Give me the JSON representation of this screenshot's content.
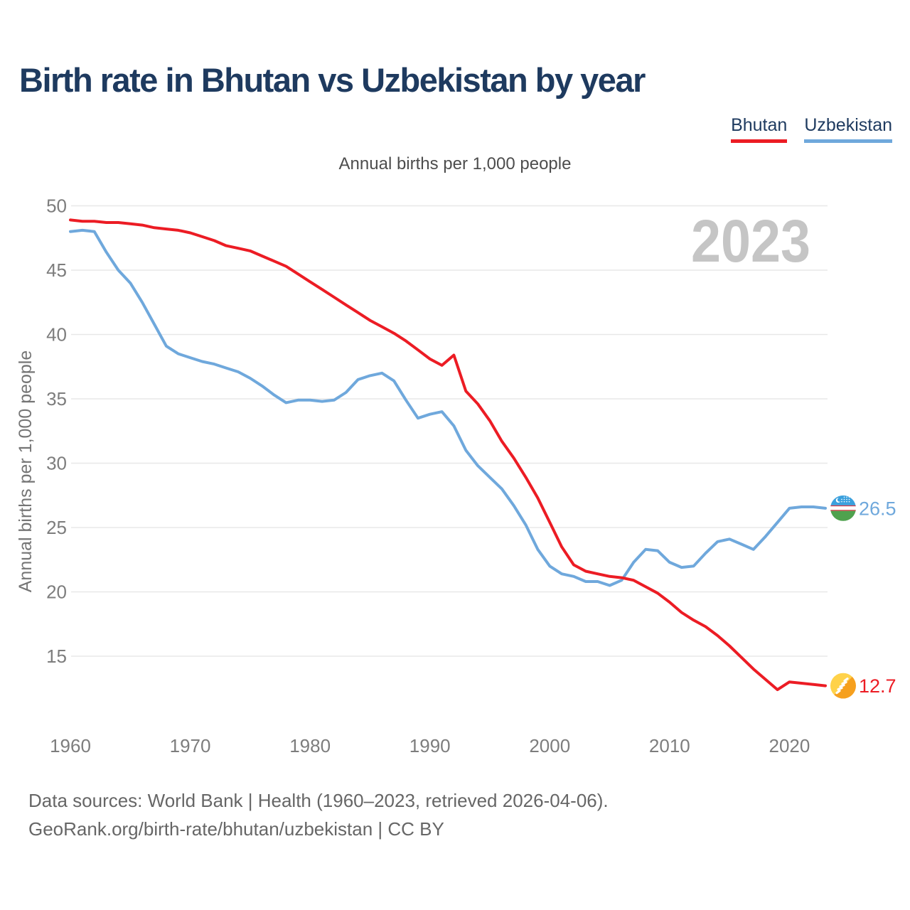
{
  "header": {
    "title": "Birth rate in Bhutan vs Uzbekistan by year"
  },
  "legend": {
    "items": [
      {
        "label": "Bhutan",
        "color": "#ec1c24"
      },
      {
        "label": "Uzbekistan",
        "color": "#6fa8dc"
      }
    ]
  },
  "footer": {
    "line1": "Data sources: World Bank | Health (1960–2023, retrieved 2026-04-06).",
    "line2": "GeoRank.org/birth-rate/bhutan/uzbekistan | CC BY"
  },
  "chart_data": {
    "type": "line",
    "title": "Birth rate in Bhutan vs Uzbekistan by year",
    "subtitle": "Annual births per 1,000 people",
    "ylabel": "Annual births per 1,000 people",
    "watermark": "2023",
    "grid": true,
    "legend_position": "top-right",
    "xlim": [
      1960,
      2023
    ],
    "ylim": [
      10.5,
      50.5
    ],
    "xticks": [
      1960,
      1970,
      1980,
      1990,
      2000,
      2010,
      2020
    ],
    "yticks": [
      15,
      20,
      25,
      30,
      35,
      40,
      45,
      50
    ],
    "tick_color": "#7d7d7d",
    "grid_color": "#e8e8e8",
    "axis_title_color": "#757575",
    "watermark_color": "#c5c5c5",
    "x": [
      1960,
      1961,
      1962,
      1963,
      1964,
      1965,
      1966,
      1967,
      1968,
      1969,
      1970,
      1971,
      1972,
      1973,
      1974,
      1975,
      1976,
      1977,
      1978,
      1979,
      1980,
      1981,
      1982,
      1983,
      1984,
      1985,
      1986,
      1987,
      1988,
      1989,
      1990,
      1991,
      1992,
      1993,
      1994,
      1995,
      1996,
      1997,
      1998,
      1999,
      2000,
      2001,
      2002,
      2003,
      2004,
      2005,
      2006,
      2007,
      2008,
      2009,
      2010,
      2011,
      2012,
      2013,
      2014,
      2015,
      2016,
      2017,
      2018,
      2019,
      2020,
      2021,
      2022,
      2023
    ],
    "series": [
      {
        "name": "Bhutan",
        "color": "#ec1c24",
        "line_width": 4,
        "end_label": "12.7",
        "flag": "bhutan",
        "values": [
          48.9,
          48.8,
          48.8,
          48.7,
          48.7,
          48.6,
          48.5,
          48.3,
          48.2,
          48.1,
          47.9,
          47.6,
          47.3,
          46.9,
          46.7,
          46.5,
          46.1,
          45.7,
          45.3,
          44.7,
          44.1,
          43.5,
          42.9,
          42.3,
          41.7,
          41.1,
          40.6,
          40.1,
          39.5,
          38.8,
          38.1,
          37.6,
          38.4,
          35.6,
          34.6,
          33.3,
          31.7,
          30.4,
          28.9,
          27.3,
          25.4,
          23.5,
          22.1,
          21.6,
          21.4,
          21.2,
          21.1,
          20.9,
          20.4,
          19.9,
          19.2,
          18.4,
          17.8,
          17.3,
          16.6,
          15.8,
          14.9,
          14.0,
          13.2,
          12.4,
          13.0,
          12.9,
          12.8,
          12.7
        ]
      },
      {
        "name": "Uzbekistan",
        "color": "#6fa8dc",
        "line_width": 4,
        "end_label": "26.5",
        "flag": "uzbekistan",
        "values": [
          48.0,
          48.1,
          48.0,
          46.4,
          45.0,
          44.0,
          42.5,
          40.8,
          39.1,
          38.5,
          38.2,
          37.9,
          37.7,
          37.4,
          37.1,
          36.6,
          36.0,
          35.3,
          34.7,
          34.9,
          34.9,
          34.8,
          34.9,
          35.5,
          36.5,
          36.8,
          37.0,
          36.4,
          34.9,
          33.5,
          33.8,
          34.0,
          32.9,
          31.0,
          29.8,
          28.9,
          28.0,
          26.7,
          25.2,
          23.3,
          22.0,
          21.4,
          21.2,
          20.8,
          20.8,
          20.5,
          20.9,
          22.3,
          23.3,
          23.2,
          22.3,
          21.9,
          22.0,
          23.0,
          23.9,
          24.1,
          23.7,
          23.3,
          24.3,
          25.4,
          26.5,
          26.6,
          26.6,
          26.5
        ]
      }
    ]
  }
}
